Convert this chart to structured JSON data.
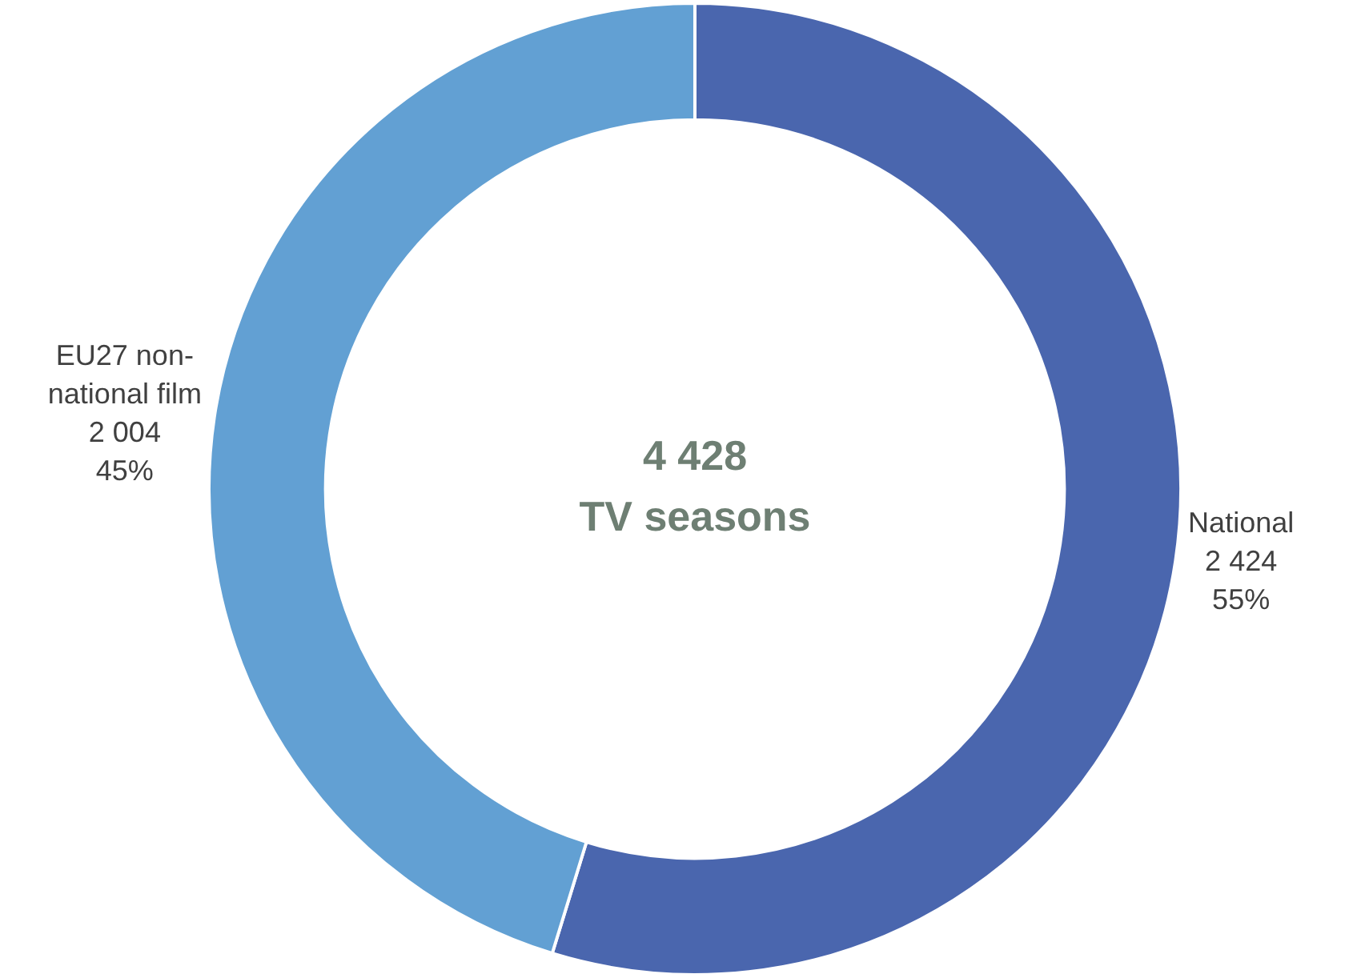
{
  "chart_data": {
    "type": "donut",
    "categories": [
      "National",
      "EU27 non-national film"
    ],
    "values": [
      2424,
      2004
    ],
    "colors": [
      "#4a66ae",
      "#62a0d3"
    ],
    "value_labels": [
      "2 424\n55%",
      "2 004\n45%"
    ],
    "annotations": [
      "4 428\nTV seasons"
    ],
    "legend": false
  }
}
